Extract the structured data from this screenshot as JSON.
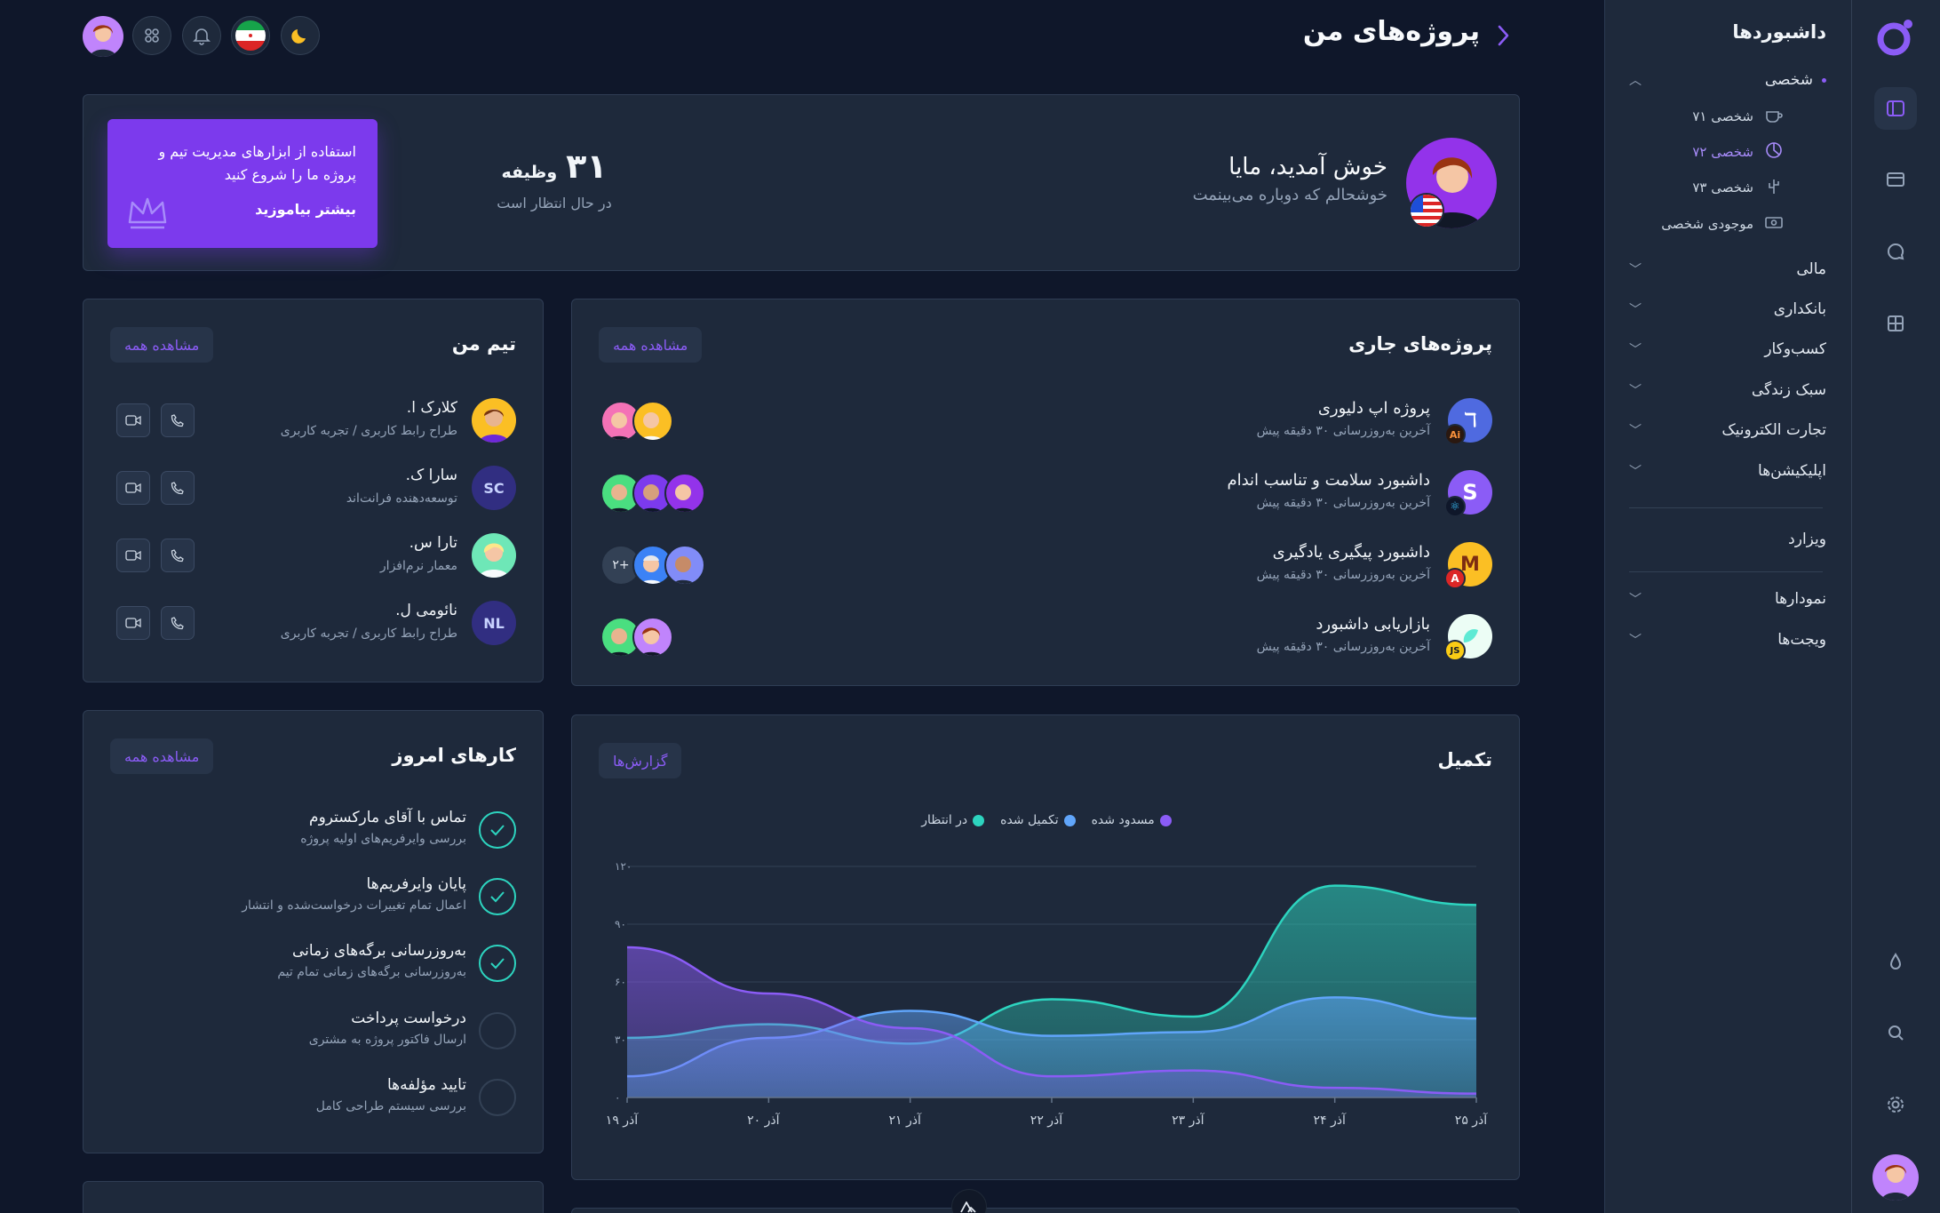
{
  "page_title": "پروژه‌های من",
  "sidebar": {
    "title": "داشبوردها",
    "sections": [
      {
        "label": "شخصی"
      },
      {
        "label": "مالی"
      },
      {
        "label": "بانکداری"
      },
      {
        "label": "کسب‌وکار"
      },
      {
        "label": "سبک زندگی"
      },
      {
        "label": "تجارت الکترونیک"
      },
      {
        "label": "اپلیکیشن‌ها"
      }
    ],
    "personal_items": [
      {
        "label": "شخصی ۷۱"
      },
      {
        "label": "شخصی ۷۲"
      },
      {
        "label": "شخصی ۷۳"
      },
      {
        "label": "موجودی شخصی"
      }
    ],
    "wizard": "ویزارد",
    "charts": "نمودارها",
    "widgets": "ویجت‌ها"
  },
  "welcome": {
    "title": "خوش آمدید، مایا",
    "subtitle": "خوشحالم که دوباره می‌بینمت",
    "tasks_count": "۳۱",
    "tasks_label": "وظیفه",
    "tasks_status": "در حال انتظار است",
    "promo_text": "استفاده از ابزارهای مدیریت تیم و پروژه ما را شروع کنید",
    "promo_link": "بیشتر بیاموزید"
  },
  "colors": {
    "accent": "#8b5cf6",
    "teal": "#2dd4bf",
    "blue": "#60a5fa",
    "bg": "#0f172a",
    "card": "#1e293b"
  },
  "projects": {
    "title": "پروژه‌های جاری",
    "view_all": "مشاهده همه",
    "items": [
      {
        "name": "پروژه اپ دلیوری",
        "updated": "آخرین به‌روزرسانی ۳۰ دقیقه پیش",
        "badge": "Ai"
      },
      {
        "name": "داشبورد سلامت و تناسب اندام",
        "updated": "آخرین به‌روزرسانی ۳۰ دقیقه پیش",
        "badge": "⚛"
      },
      {
        "name": "داشبورد پیگیری یادگیری",
        "updated": "آخرین به‌روزرسانی ۳۰ دقیقه پیش",
        "badge": "A"
      },
      {
        "name": "بازاریابی داشبورد",
        "updated": "آخرین به‌روزرسانی ۳۰ دقیقه پیش",
        "badge": "JS"
      }
    ],
    "more_count": "+۲"
  },
  "team": {
    "title": "تیم من",
    "view_all": "مشاهده همه",
    "members": [
      {
        "name": "کلارک ا.",
        "role": "طراح رابط کاربری / تجربه کاربری"
      },
      {
        "name": "سارا ک.",
        "role": "توسعه‌دهنده فرانت‌اند",
        "initials": "SC"
      },
      {
        "name": "تارا س.",
        "role": "معمار نرم‌افزار"
      },
      {
        "name": "نائومی ل.",
        "role": "طراح رابط کاربری / تجربه کاربری",
        "initials": "NL"
      }
    ]
  },
  "tasks": {
    "title": "کارهای امروز",
    "view_all": "مشاهده همه",
    "items": [
      {
        "title": "تماس با آقای مارکستروم",
        "sub": "بررسی وایرفریم‌های اولیه پروژه",
        "done": true
      },
      {
        "title": "پایان وایرفریم‌ها",
        "sub": "اعمال تمام تغییرات درخواست‌شده و انتشار",
        "done": true
      },
      {
        "title": "به‌روزرسانی برگه‌های زمانی",
        "sub": "به‌روزرسانی برگه‌های زمانی تمام تیم",
        "done": true
      },
      {
        "title": "درخواست پرداخت",
        "sub": "ارسال فاکتور پروژه به مشتری",
        "done": false
      },
      {
        "title": "تایید مؤلفه‌ها",
        "sub": "بررسی سیستم طراحی کامل",
        "done": false
      }
    ]
  },
  "completion": {
    "title": "تکمیل",
    "reports_button": "گزارش‌ها"
  },
  "chart_data": {
    "type": "area",
    "title": "تکمیل",
    "categories": [
      "آذر ۱۹",
      "آذر ۲۰",
      "آذر ۲۱",
      "آذر ۲۲",
      "آذر ۲۳",
      "آذر ۲۴",
      "آذر ۲۵"
    ],
    "ylim": [
      0,
      120
    ],
    "yticks": [
      "۰",
      "۳۰",
      "۶۰",
      "۹۰",
      "۱۲۰"
    ],
    "ytick_values": [
      0,
      30,
      60,
      90,
      120
    ],
    "legend_position": "top-center",
    "series": [
      {
        "name": "مسدود شده",
        "color": "#8b5cf6",
        "values": [
          78,
          54,
          36,
          11,
          14,
          5,
          2
        ]
      },
      {
        "name": "تکمیل شده",
        "color": "#60a5fa",
        "values": [
          11,
          31,
          45,
          32,
          34,
          52,
          41
        ]
      },
      {
        "name": "در انتظار",
        "color": "#2dd4bf",
        "values": [
          31,
          38,
          28,
          51,
          42,
          110,
          100
        ]
      }
    ]
  }
}
